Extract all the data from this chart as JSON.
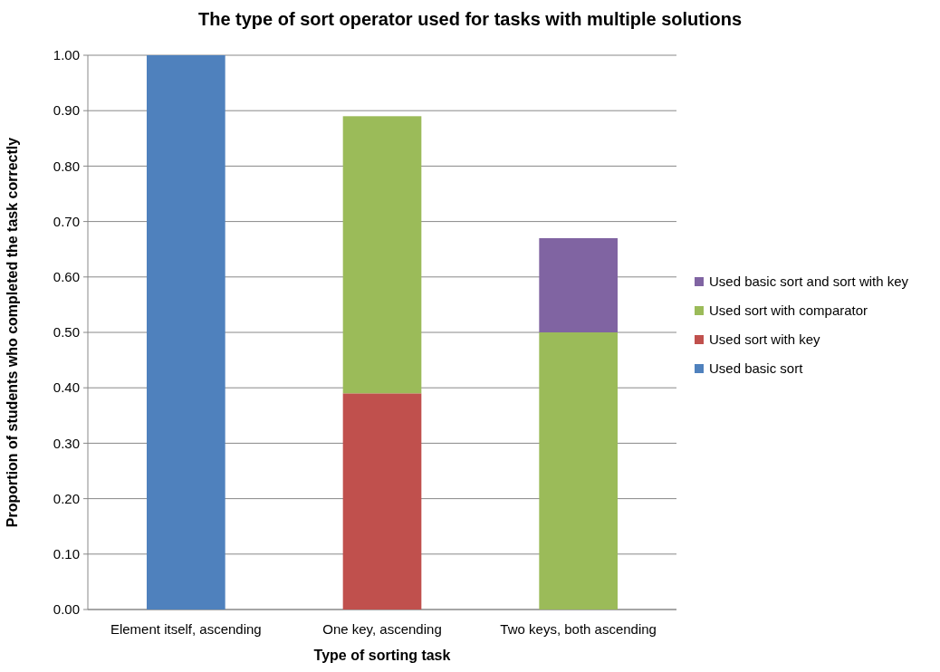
{
  "chart_data": {
    "type": "bar",
    "stacked": true,
    "title": "The type of sort operator used for tasks with multiple solutions",
    "xlabel": "Type of sorting task",
    "ylabel": "Proportion of students who completed the task correctly",
    "categories": [
      "Element itself, ascending",
      "One key, ascending",
      "Two keys, both ascending"
    ],
    "series": [
      {
        "name": "Used basic sort",
        "color": "#4f81bd",
        "values": [
          1.0,
          null,
          null
        ]
      },
      {
        "name": "Used sort with key",
        "color": "#c0504d",
        "values": [
          null,
          0.39,
          null
        ]
      },
      {
        "name": "Used sort with comparator",
        "color": "#9bbb59",
        "values": [
          null,
          0.5,
          0.5
        ]
      },
      {
        "name": "Used basic sort and sort with key",
        "color": "#8064a2",
        "values": [
          null,
          null,
          0.17
        ]
      }
    ],
    "ylim": [
      0,
      1
    ],
    "yticks": [
      {
        "value": 0,
        "label": "0.00"
      },
      {
        "value": 0.1,
        "label": "0.10"
      },
      {
        "value": 0.2,
        "label": "0.20"
      },
      {
        "value": 0.3,
        "label": "0.30"
      },
      {
        "value": 0.4,
        "label": "0.40"
      },
      {
        "value": 0.5,
        "label": "0.50"
      },
      {
        "value": 0.6,
        "label": "0.60"
      },
      {
        "value": 0.7,
        "label": "0.70"
      },
      {
        "value": 0.8,
        "label": "0.80"
      },
      {
        "value": 0.9,
        "label": "0.90"
      },
      {
        "value": 1,
        "label": "1.00"
      }
    ],
    "grid": "y",
    "legend": "right"
  }
}
